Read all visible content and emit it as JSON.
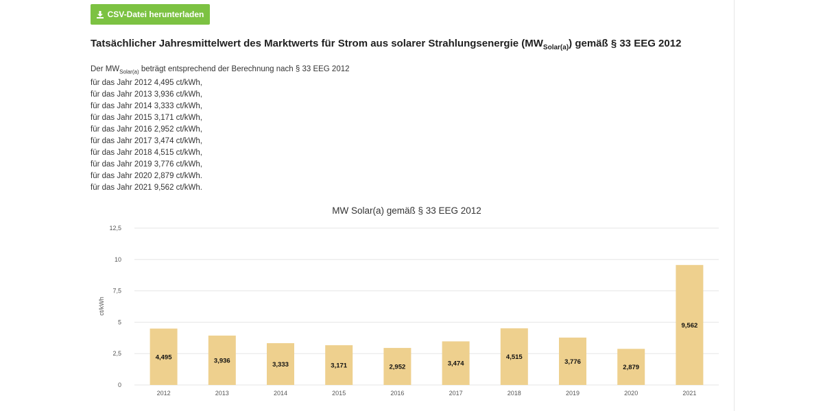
{
  "download_button": {
    "label": "CSV-Datei herunterladen",
    "icon": "download-icon"
  },
  "heading": {
    "prefix": "Tatsächlicher Jahresmittelwert des Marktwerts für Strom aus solarer Strahlungsenergie (MW",
    "sub": "Solar(a)",
    "suffix": ") gemäß § 33 EEG 2012"
  },
  "intro": {
    "prefix": "Der MW",
    "sub": "Solar(a)",
    "suffix": " beträgt entsprechend der Berechnung nach § 33 EEG 2012"
  },
  "year_lines": [
    "für das Jahr 2012 4,495 ct/kWh,",
    "für das Jahr 2013 3,936 ct/kWh,",
    "für das Jahr 2014 3,333 ct/kWh,",
    "für das Jahr 2015 3,171 ct/kWh,",
    "für das Jahr 2016 2,952 ct/kWh,",
    "für das Jahr 2017 3,474 ct/kWh,",
    "für das Jahr 2018 4,515 ct/kWh,",
    "für das Jahr 2019 3,776 ct/kWh,",
    "für das Jahr 2020 2,879 ct/kWh.",
    "für das Jahr 2021 9,562 ct/kWh."
  ],
  "colors": {
    "button": "#7cc242",
    "bar": "#eed08e",
    "grid": "#e6e6e6"
  },
  "chart_data": {
    "type": "bar",
    "title": "MW Solar(a) gemäß § 33 EEG 2012",
    "xlabel": "",
    "ylabel": "ct/kWh",
    "categories": [
      "2012",
      "2013",
      "2014",
      "2015",
      "2016",
      "2017",
      "2018",
      "2019",
      "2020",
      "2021"
    ],
    "values": [
      4.495,
      3.936,
      3.333,
      3.171,
      2.952,
      3.474,
      4.515,
      3.776,
      2.879,
      9.562
    ],
    "data_labels": [
      "4,495",
      "3,936",
      "3,333",
      "3,171",
      "2,952",
      "3,474",
      "4,515",
      "3,776",
      "2,879",
      "9,562"
    ],
    "yticks": [
      0,
      2.5,
      5,
      7.5,
      10,
      12.5
    ],
    "ytick_labels": [
      "0",
      "2,5",
      "5",
      "7,5",
      "10",
      "12,5"
    ],
    "ylim": [
      0,
      12.5
    ],
    "grid": true,
    "legend": "none"
  }
}
